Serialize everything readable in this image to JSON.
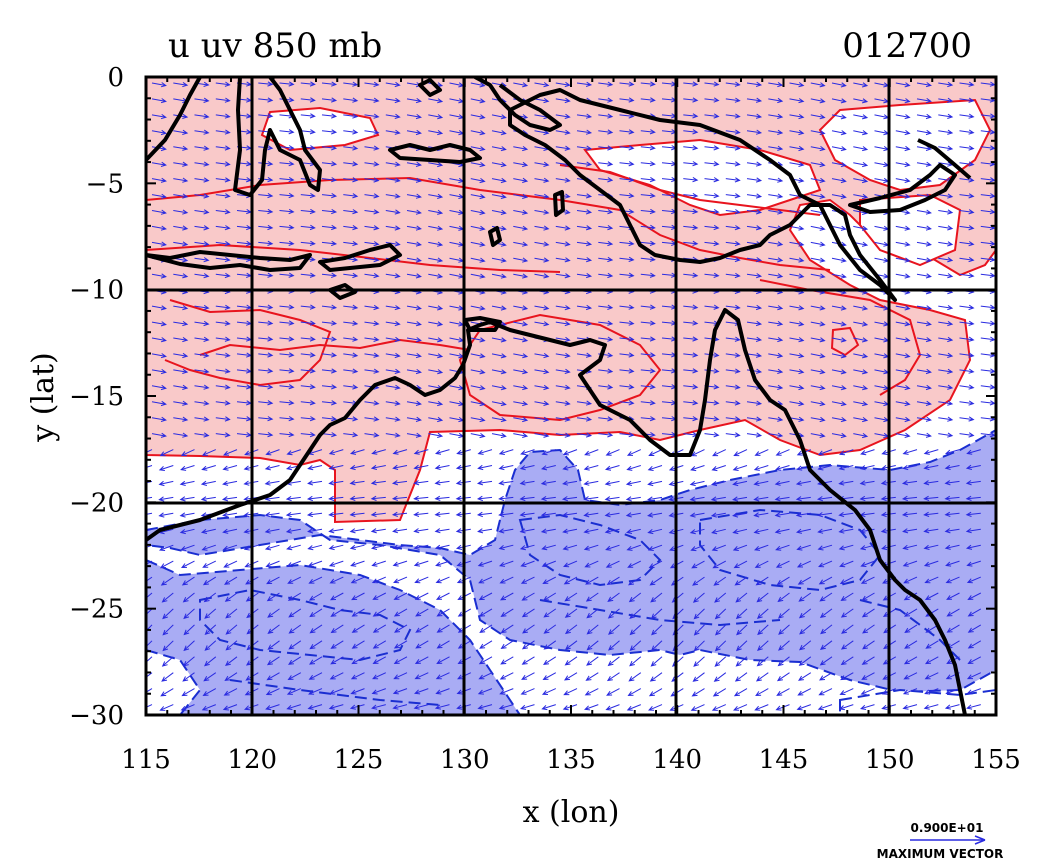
{
  "title_left": "u uv 850 mb",
  "title_right": "012700",
  "xlabel": "x (lon)",
  "ylabel": "y (lat)",
  "xticks": [
    "115",
    "120",
    "125",
    "130",
    "135",
    "140",
    "145",
    "150",
    "155"
  ],
  "yticks": [
    "0",
    "−5",
    "−10",
    "−15",
    "−20",
    "−25",
    "−30"
  ],
  "vector_legend": {
    "magnitude": "0.900E+01",
    "label": "MAXIMUM VECTOR"
  },
  "colors": {
    "positive_fill": "#f9c9c9",
    "positive_contour": "#e8141e",
    "negative_fill": "#a9acf4",
    "negative_contour": "#1a2ed1",
    "vector": "#2a2be0",
    "coast": "#000000",
    "grid": "#000000"
  },
  "chart_data": {
    "type": "map",
    "variable": "u",
    "level": "850 mb",
    "xlim": [
      115,
      155
    ],
    "ylim": [
      -30,
      0
    ],
    "xgrid": [
      120,
      130,
      140,
      150
    ],
    "ygrid": [
      -10,
      -20
    ]
  }
}
